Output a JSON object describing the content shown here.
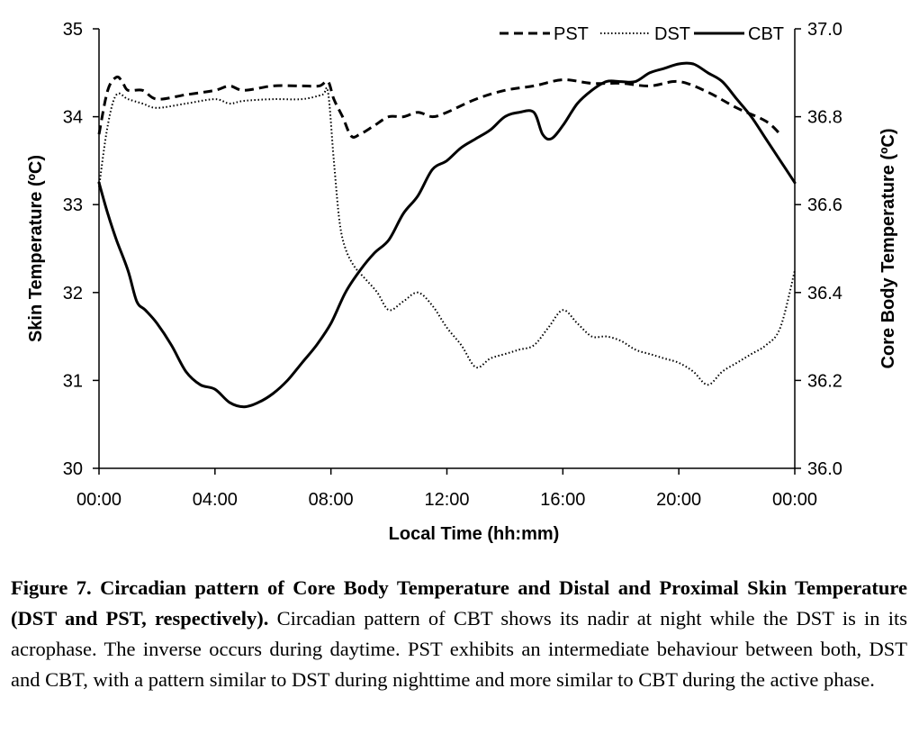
{
  "chart_data": {
    "type": "line",
    "xlabel": "Local Time (hh:mm)",
    "ylabel_left": "Skin Temperature (ºC)",
    "ylabel_right": "Core Body Temperature (ºC)",
    "x_ticks": [
      "00:00",
      "04:00",
      "08:00",
      "12:00",
      "16:00",
      "20:00",
      "00:00"
    ],
    "y_left_ticks": [
      "30",
      "31",
      "32",
      "33",
      "34",
      "35"
    ],
    "y_right_ticks": [
      "36.0",
      "36.2",
      "36.4",
      "36.6",
      "36.8",
      "37.0"
    ],
    "xlim_hours": [
      0,
      24
    ],
    "ylim_left": [
      30,
      35
    ],
    "ylim_right": [
      36.0,
      37.0
    ],
    "grid": false,
    "legend_position": "top-right",
    "series": [
      {
        "name": "PST",
        "axis": "left",
        "style": "dashed",
        "x_hours": [
          0,
          0.3,
          0.6,
          0.8,
          1.0,
          1.5,
          2.0,
          3.0,
          4.0,
          4.5,
          5.0,
          6.0,
          7.0,
          7.6,
          7.9,
          8.1,
          8.4,
          8.7,
          9.0,
          9.5,
          10.0,
          10.5,
          11.0,
          11.5,
          12.0,
          13.0,
          14.0,
          15.0,
          16.0,
          17.0,
          18.0,
          19.0,
          20.0,
          21.0,
          22.0,
          23.0,
          23.5
        ],
        "values": [
          33.8,
          34.3,
          34.45,
          34.4,
          34.3,
          34.3,
          34.2,
          34.25,
          34.3,
          34.35,
          34.3,
          34.35,
          34.35,
          34.35,
          34.4,
          34.2,
          34.0,
          33.78,
          33.8,
          33.9,
          34.0,
          34.0,
          34.05,
          34.0,
          34.05,
          34.2,
          34.3,
          34.35,
          34.42,
          34.38,
          34.38,
          34.35,
          34.4,
          34.28,
          34.1,
          33.95,
          33.8
        ]
      },
      {
        "name": "DST",
        "axis": "left",
        "style": "dotted",
        "x_hours": [
          0,
          0.3,
          0.6,
          1.0,
          1.5,
          2.0,
          3.0,
          4.0,
          4.5,
          5.0,
          6.0,
          7.0,
          7.7,
          7.9,
          8.1,
          8.3,
          8.5,
          8.8,
          9.2,
          9.6,
          10.0,
          10.5,
          11.0,
          11.5,
          12.0,
          12.5,
          13.0,
          13.5,
          14.0,
          14.5,
          15.0,
          15.5,
          16.0,
          16.5,
          17.0,
          17.5,
          18.0,
          18.5,
          19.0,
          19.5,
          20.0,
          20.5,
          21.0,
          21.5,
          22.0,
          22.5,
          23.0,
          23.5,
          24.0
        ],
        "values": [
          33.2,
          33.9,
          34.25,
          34.2,
          34.15,
          34.1,
          34.15,
          34.2,
          34.15,
          34.18,
          34.2,
          34.2,
          34.25,
          34.28,
          33.5,
          32.8,
          32.5,
          32.3,
          32.15,
          32.0,
          31.8,
          31.9,
          32.0,
          31.85,
          31.6,
          31.4,
          31.15,
          31.25,
          31.3,
          31.35,
          31.4,
          31.6,
          31.8,
          31.65,
          31.5,
          31.5,
          31.45,
          31.35,
          31.3,
          31.25,
          31.2,
          31.1,
          30.95,
          31.1,
          31.2,
          31.3,
          31.4,
          31.6,
          32.25
        ]
      },
      {
        "name": "CBT",
        "axis": "right",
        "style": "solid",
        "x_hours": [
          0,
          0.3,
          0.6,
          1.0,
          1.3,
          1.6,
          2.0,
          2.5,
          3.0,
          3.5,
          4.0,
          4.5,
          5.0,
          5.5,
          6.0,
          6.5,
          7.0,
          7.5,
          8.0,
          8.5,
          9.0,
          9.5,
          10.0,
          10.5,
          11.0,
          11.5,
          12.0,
          12.5,
          13.0,
          13.5,
          14.0,
          14.5,
          15.0,
          15.3,
          15.6,
          16.0,
          16.5,
          17.0,
          17.5,
          18.0,
          18.5,
          19.0,
          19.5,
          20.0,
          20.5,
          21.0,
          21.5,
          22.0,
          22.5,
          23.0,
          23.5,
          24.0
        ],
        "values": [
          36.65,
          36.58,
          36.52,
          36.45,
          36.38,
          36.36,
          36.33,
          36.28,
          36.22,
          36.19,
          36.18,
          36.15,
          36.14,
          36.15,
          36.17,
          36.2,
          36.24,
          36.28,
          36.33,
          36.4,
          36.45,
          36.49,
          36.52,
          36.58,
          36.62,
          36.68,
          36.7,
          36.73,
          36.75,
          36.77,
          36.8,
          36.81,
          36.81,
          36.76,
          36.75,
          36.78,
          36.83,
          36.86,
          36.88,
          36.88,
          36.88,
          36.9,
          36.91,
          36.92,
          36.92,
          36.9,
          36.88,
          36.84,
          36.8,
          36.75,
          36.7,
          36.65
        ]
      }
    ]
  },
  "caption": {
    "bold": "Figure 7. Circadian pattern of Core Body Temperature and Distal and Proximal Skin Temperature (DST and PST, respectively).",
    "text": " Circadian pattern of CBT shows its nadir at night while the DST is in its acrophase. The inverse occurs during daytime. PST exhibits an intermediate behaviour between both, DST and CBT, with a pattern similar to DST during nighttime and more similar to CBT during the active phase."
  }
}
